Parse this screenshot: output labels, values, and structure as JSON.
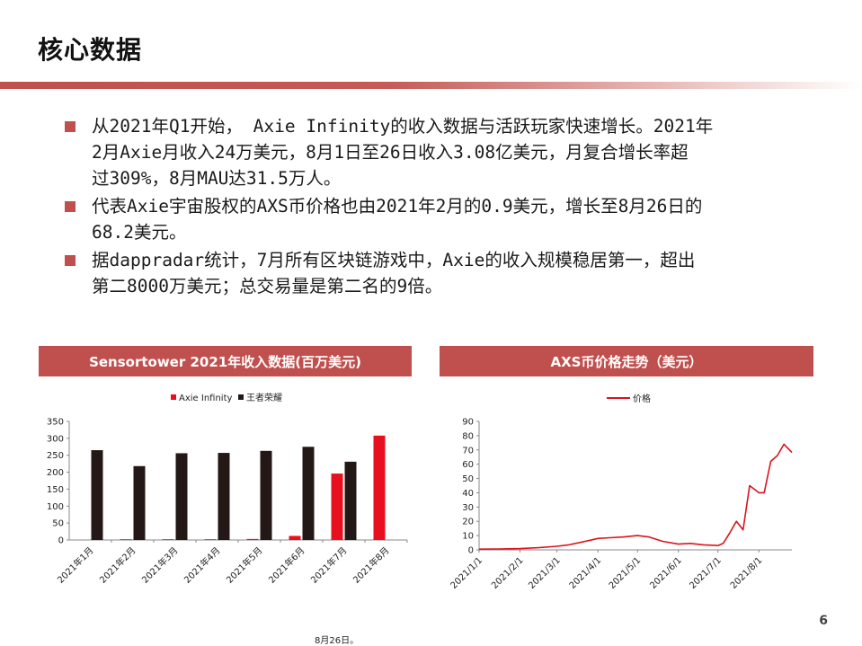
{
  "page": {
    "title": "核心数据",
    "page_number": "6",
    "footnote": "8月26日。"
  },
  "bullets": [
    "从2021年Q1开始， Axie Infinity的收入数据与活跃玩家快速增长。2021年2月Axie月收入24万美元，8月1日至26日收入3.08亿美元，月复合增长率超过309%，8月MAU达31.5万人。",
    "代表Axie宇宙股权的AXS币价格也由2021年2月的0.9美元，增长至8月26日的68.2美元。",
    "据dappradar统计，7月所有区块链游戏中，Axie的收入规模稳居第一，超出第二8000万美元；总交易量是第二名的9倍。"
  ],
  "bullet_lines": [
    [
      "从2021年Q1开始， Axie Infinity的收入数据与活跃玩家快速增长。2021年",
      "2月Axie月收入24万美元，8月1日至26日收入3.08亿美元，月复合增长率超",
      "过309%，8月MAU达31.5万人。"
    ],
    [
      "代表Axie宇宙股权的AXS币价格也由2021年2月的0.9美元，增长至8月26日的",
      "68.2美元。"
    ],
    [
      "据dappradar统计，7月所有区块链游戏中，Axie的收入规模稳居第一，超出",
      "第二8000万美元；总交易量是第二名的9倍。"
    ]
  ],
  "colors": {
    "accent": "#c0504d",
    "axie": "#e8101e",
    "wzry": "#231815",
    "price_line": "#d9141e"
  },
  "chart_data": [
    {
      "type": "bar",
      "title": "Sensortower 2021年收入数据(百万美元)",
      "categories": [
        "2021年1月",
        "2021年2月",
        "2021年3月",
        "2021年4月",
        "2021年5月",
        "2021年6月",
        "2021年7月",
        "2021年8月"
      ],
      "series": [
        {
          "name": "Axie Infinity",
          "values": [
            0,
            0.2,
            0.5,
            1,
            3,
            12,
            196,
            308
          ]
        },
        {
          "name": "王者荣耀",
          "values": [
            265,
            218,
            256,
            257,
            263,
            275,
            231,
            0
          ]
        }
      ],
      "ylim": [
        0,
        350
      ],
      "yticks": [
        "0",
        "50",
        "100",
        "150",
        "200",
        "250",
        "300",
        "350"
      ],
      "legend": "top-center",
      "grid": false
    },
    {
      "type": "line",
      "title": "AXS币价格走势（美元）",
      "series": [
        {
          "name": "价格",
          "x": [
            "2021/1/1",
            "2021/1/15",
            "2021/2/1",
            "2021/2/15",
            "2021/3/1",
            "2021/3/10",
            "2021/3/20",
            "2021/4/1",
            "2021/4/10",
            "2021/4/20",
            "2021/5/1",
            "2021/5/10",
            "2021/5/20",
            "2021/6/1",
            "2021/6/10",
            "2021/6/20",
            "2021/7/1",
            "2021/7/5",
            "2021/7/10",
            "2021/7/15",
            "2021/7/20",
            "2021/7/25",
            "2021/8/1",
            "2021/8/5",
            "2021/8/10",
            "2021/8/15",
            "2021/8/20",
            "2021/8/26"
          ],
          "values": [
            0.5,
            0.6,
            0.9,
            1.5,
            2.5,
            3.5,
            5.5,
            8,
            8.5,
            9,
            10,
            9,
            6,
            4,
            4.5,
            3.5,
            3,
            4.5,
            12,
            20,
            14,
            45,
            40,
            40,
            62,
            66,
            74,
            68.2
          ]
        }
      ],
      "xticks": [
        "2021/1/1",
        "2021/2/1",
        "2021/3/1",
        "2021/4/1",
        "2021/5/1",
        "2021/6/1",
        "2021/7/1",
        "2021/8/1"
      ],
      "ylim": [
        0,
        90
      ],
      "yticks": [
        "0",
        "10",
        "20",
        "30",
        "40",
        "50",
        "60",
        "70",
        "80",
        "90"
      ],
      "legend": "top-center",
      "grid": false
    }
  ]
}
